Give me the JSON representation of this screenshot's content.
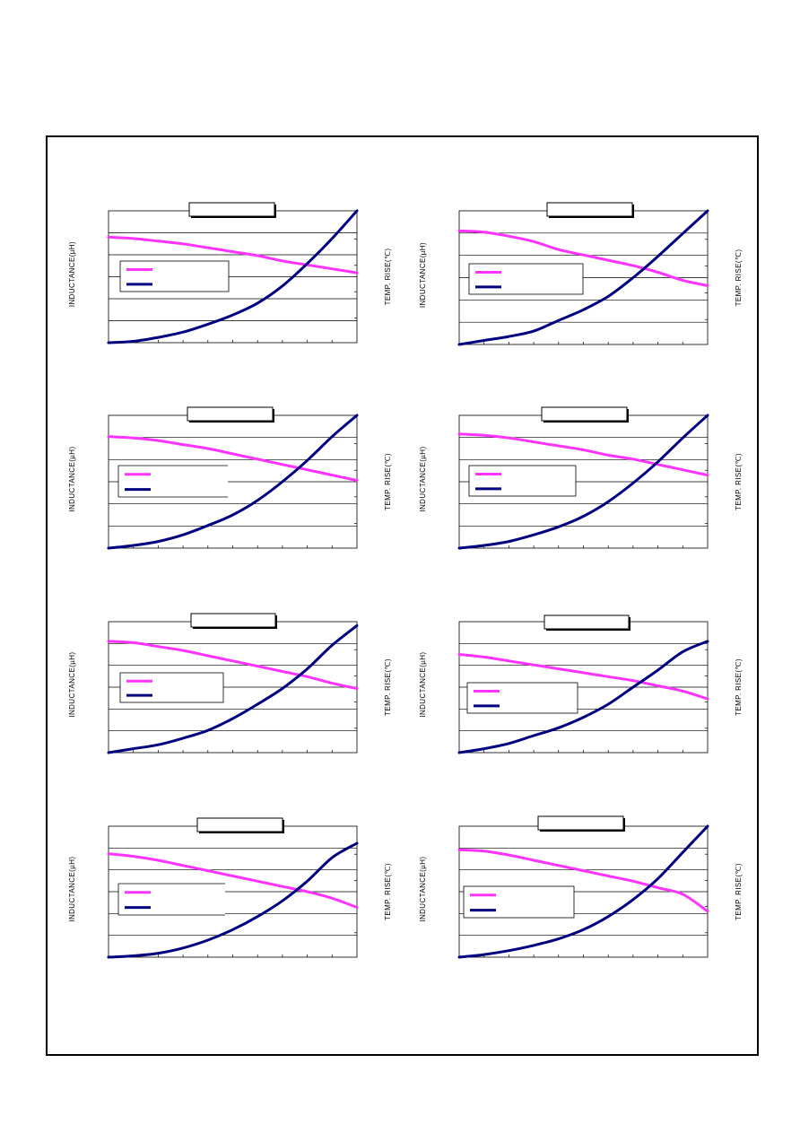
{
  "colors": {
    "inductance_line": "#ff33ff",
    "temp_rise_line": "#000080",
    "grid": "#000000",
    "frame": "#000000"
  },
  "chart_data": [
    {
      "type": "line",
      "ylabel_left": "INDUCTANCE(µH)",
      "ylabel_right": "TEMP. RISE(℃)",
      "title": "",
      "legend": "center-left",
      "grid": true,
      "x": [
        0,
        1,
        2,
        3,
        4,
        5,
        6,
        7,
        8,
        9,
        10
      ],
      "series": [
        {
          "values": [
            0.8,
            0.79,
            0.77,
            0.75,
            0.72,
            0.69,
            0.66,
            0.62,
            0.59,
            0.56,
            0.53
          ]
        },
        {
          "values": [
            0.0,
            0.01,
            0.04,
            0.08,
            0.14,
            0.21,
            0.3,
            0.43,
            0.6,
            0.79,
            1.0
          ]
        }
      ]
    },
    {
      "type": "line",
      "ylabel_left": "INDUCTANCE(µH)",
      "ylabel_right": "TEMP. RISE(℃)",
      "title": "",
      "legend": "center-left",
      "grid": true,
      "x": [
        0,
        1,
        2,
        3,
        4,
        5,
        6,
        7,
        8,
        9,
        10
      ],
      "series": [
        {
          "values": [
            0.85,
            0.84,
            0.81,
            0.77,
            0.71,
            0.67,
            0.63,
            0.59,
            0.54,
            0.48,
            0.44
          ]
        },
        {
          "values": [
            0.0,
            0.03,
            0.06,
            0.1,
            0.18,
            0.26,
            0.36,
            0.5,
            0.66,
            0.83,
            1.0
          ]
        }
      ]
    },
    {
      "type": "line",
      "ylabel_left": "INDUCTANCE(µH)",
      "ylabel_right": "TEMP. RISE(℃)",
      "title": "",
      "legend": "center-left",
      "grid": true,
      "x": [
        0,
        1,
        2,
        3,
        4,
        5,
        6,
        7,
        8,
        9,
        10
      ],
      "series": [
        {
          "values": [
            0.84,
            0.83,
            0.81,
            0.78,
            0.75,
            0.71,
            0.67,
            0.63,
            0.59,
            0.55,
            0.51
          ]
        },
        {
          "values": [
            0.0,
            0.02,
            0.05,
            0.1,
            0.17,
            0.25,
            0.36,
            0.5,
            0.66,
            0.84,
            1.0
          ]
        }
      ]
    },
    {
      "type": "line",
      "ylabel_left": "INDUCTANCE(µH)",
      "ylabel_right": "TEMP. RISE(℃)",
      "title": "",
      "legend": "center-left",
      "grid": true,
      "x": [
        0,
        1,
        2,
        3,
        4,
        5,
        6,
        7,
        8,
        9,
        10
      ],
      "series": [
        {
          "values": [
            0.86,
            0.85,
            0.83,
            0.8,
            0.77,
            0.74,
            0.7,
            0.67,
            0.63,
            0.59,
            0.55
          ]
        },
        {
          "values": [
            0.0,
            0.02,
            0.05,
            0.1,
            0.16,
            0.24,
            0.35,
            0.49,
            0.65,
            0.83,
            1.0
          ]
        }
      ]
    },
    {
      "type": "line",
      "ylabel_left": "INDUCTANCE(µH)",
      "ylabel_right": "TEMP. RISE(℃)",
      "title": "",
      "legend": "center-left",
      "grid": true,
      "x": [
        0,
        1,
        2,
        3,
        4,
        5,
        6,
        7,
        8,
        9,
        10
      ],
      "series": [
        {
          "values": [
            0.85,
            0.84,
            0.81,
            0.78,
            0.74,
            0.7,
            0.66,
            0.62,
            0.58,
            0.53,
            0.49
          ]
        },
        {
          "values": [
            0.0,
            0.03,
            0.06,
            0.11,
            0.17,
            0.26,
            0.37,
            0.49,
            0.64,
            0.82,
            0.97
          ]
        }
      ]
    },
    {
      "type": "line",
      "ylabel_left": "INDUCTANCE(µH)",
      "ylabel_right": "TEMP. RISE(℃)",
      "title": "",
      "legend": "center-left",
      "grid": true,
      "x": [
        0,
        1,
        2,
        3,
        4,
        5,
        6,
        7,
        8,
        9,
        10
      ],
      "series": [
        {
          "values": [
            0.75,
            0.73,
            0.7,
            0.67,
            0.64,
            0.61,
            0.58,
            0.55,
            0.51,
            0.47,
            0.41
          ]
        },
        {
          "values": [
            0.0,
            0.03,
            0.07,
            0.13,
            0.19,
            0.27,
            0.37,
            0.5,
            0.63,
            0.77,
            0.85
          ]
        }
      ]
    },
    {
      "type": "line",
      "ylabel_left": "INDUCTANCE(µH)",
      "ylabel_right": "TEMP. RISE(℃)",
      "title": "",
      "legend": "center-left",
      "grid": true,
      "x": [
        0,
        1,
        2,
        3,
        4,
        5,
        6,
        7,
        8,
        9,
        10
      ],
      "series": [
        {
          "values": [
            0.79,
            0.77,
            0.74,
            0.7,
            0.66,
            0.62,
            0.58,
            0.54,
            0.5,
            0.45,
            0.38
          ]
        },
        {
          "values": [
            0.0,
            0.01,
            0.03,
            0.07,
            0.13,
            0.21,
            0.31,
            0.43,
            0.58,
            0.76,
            0.87
          ]
        }
      ]
    },
    {
      "type": "line",
      "ylabel_left": "INDUCTANCE(µH)",
      "ylabel_right": "TEMP. RISE(℃)",
      "title": "",
      "legend": "center-left",
      "grid": true,
      "x": [
        0,
        1,
        2,
        3,
        4,
        5,
        6,
        7,
        8,
        9,
        10
      ],
      "series": [
        {
          "values": [
            0.82,
            0.81,
            0.78,
            0.74,
            0.7,
            0.66,
            0.62,
            0.58,
            0.53,
            0.48,
            0.35
          ]
        },
        {
          "values": [
            0.0,
            0.02,
            0.05,
            0.09,
            0.14,
            0.21,
            0.31,
            0.44,
            0.6,
            0.8,
            1.0
          ]
        }
      ]
    }
  ]
}
